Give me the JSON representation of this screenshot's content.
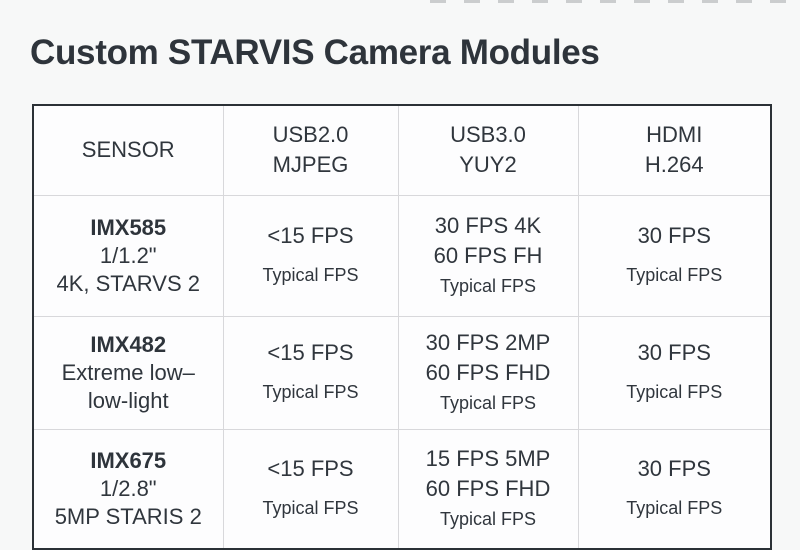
{
  "title": "Custom STARVIS Camera Modules",
  "table": {
    "headers": [
      {
        "line1": "SENSOR"
      },
      {
        "line1": "USB2.0",
        "line2": "MJPEG"
      },
      {
        "line1": "USB3.0",
        "line2": "YUY2"
      },
      {
        "line1": "HDMI",
        "line2": "H.264"
      }
    ],
    "rows": [
      {
        "sensor": {
          "name": "IMX585",
          "detail1": "1/1.2\"",
          "detail2": "4K, STARVS 2"
        },
        "usb2": {
          "line1": "<15 FPS",
          "note": "Typical FPS"
        },
        "usb3": {
          "line1": "30 FPS 4K",
          "line2": "60 FPS FH",
          "note": "Typical FPS"
        },
        "hdmi": {
          "line1": "30 FPS",
          "note": "Typical FPS"
        }
      },
      {
        "sensor": {
          "name": "IMX482",
          "detail1": "Extreme low–",
          "detail2": "low-light"
        },
        "usb2": {
          "line1": "<15 FPS",
          "note": "Typical FPS"
        },
        "usb3": {
          "line1": "30 FPS 2MP",
          "line2": "60 FPS FHD",
          "note": "Typical FPS"
        },
        "hdmi": {
          "line1": "30 FPS",
          "note": "Typical FPS"
        }
      },
      {
        "sensor": {
          "name": "IMX675",
          "detail1": "1/2.8\"",
          "detail2": "5MP STARIS 2"
        },
        "usb2": {
          "line1": "<15 FPS",
          "note": "Typical FPS"
        },
        "usb3": {
          "line1": "15 FPS 5MP",
          "line2": "60 FPS FHD",
          "note": "Typical FPS"
        },
        "hdmi": {
          "line1": "30 FPS",
          "note": "Typical FPS"
        }
      }
    ]
  },
  "colors": {
    "text": "#30363d",
    "outer_border": "#2b3136",
    "inner_border": "#d8d8db",
    "page_bg": "#f7f8f8",
    "cell_bg": "#fdfdfe"
  }
}
